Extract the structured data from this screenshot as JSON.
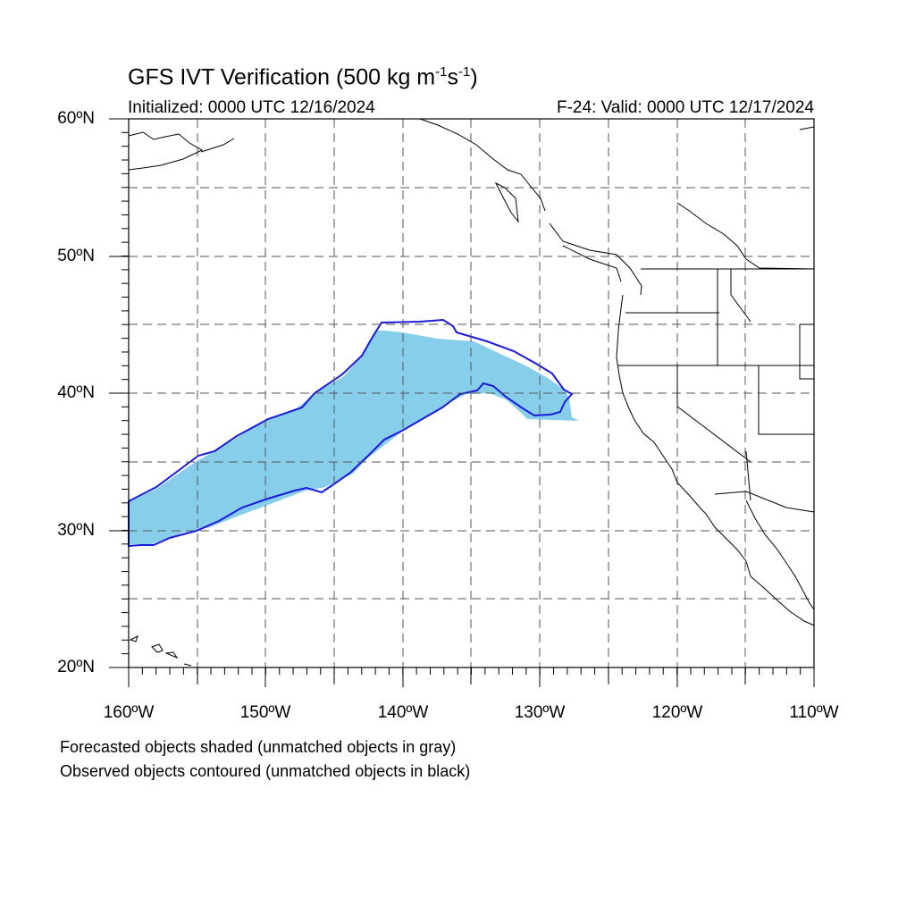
{
  "title": {
    "main": "GFS IVT Verification (500 kg m",
    "sup1": "-1",
    "mid": "s",
    "sup2": "-1",
    "end": ")"
  },
  "subtitle_left": "Initialized: 0000 UTC 12/16/2024",
  "subtitle_right": "F-24: Valid: 0000 UTC 12/17/2024",
  "lat_labels": [
    "60ºN",
    "50ºN",
    "40ºN",
    "30ºN",
    "20ºN"
  ],
  "lon_labels": [
    "160ºW",
    "150ºW",
    "140ºW",
    "130ºW",
    "120ºW",
    "110ºW"
  ],
  "notes": [
    "Forecasted objects shaded (unmatched objects in gray)",
    "Observed objects contoured (unmatched objects in black)"
  ],
  "colors": {
    "forecast_fill": "#87ceeb",
    "observed_contour": "#1a1adc",
    "coastline": "#000000",
    "grid": "#555555"
  },
  "map": {
    "lat_range": [
      20,
      60
    ],
    "lon_range": [
      -160,
      -110
    ],
    "projection": "cylindrical-equidistant"
  }
}
